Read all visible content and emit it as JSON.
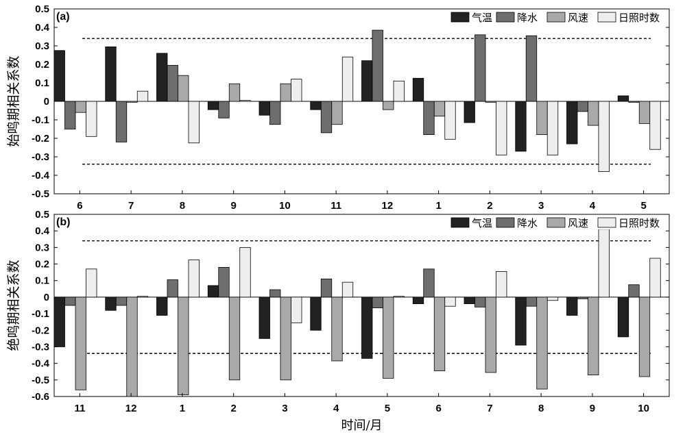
{
  "chart_data": [
    {
      "type": "bar",
      "panel_label": "(a)",
      "ylabel": "始鸣期相关系数",
      "xlabel": "",
      "ylim": [
        -0.5,
        0.5
      ],
      "yticks": [
        -0.5,
        -0.4,
        -0.3,
        -0.2,
        -0.1,
        0,
        0.1,
        0.2,
        0.3,
        0.4,
        0.5
      ],
      "ytick_labels": [
        "-0.5",
        "-0.4",
        "-0.3",
        "-0.2",
        "-0.1",
        "0",
        "0.1",
        "0.2",
        "0.3",
        "0.4",
        "0.5"
      ],
      "categories": [
        "6",
        "7",
        "8",
        "9",
        "10",
        "11",
        "12",
        "1",
        "2",
        "3",
        "4",
        "5"
      ],
      "threshold": 0.34,
      "legend_position": "top-right",
      "series": [
        {
          "name": "气温",
          "color": "#222222",
          "values": [
            0.275,
            0.295,
            0.26,
            -0.045,
            -0.075,
            -0.045,
            0.22,
            0.125,
            -0.115,
            -0.27,
            -0.23,
            0.03
          ]
        },
        {
          "name": "降水",
          "color": "#6e6e6e",
          "values": [
            -0.15,
            -0.22,
            0.195,
            -0.09,
            -0.125,
            -0.17,
            0.385,
            -0.18,
            0.36,
            0.355,
            -0.055,
            -0.005
          ]
        },
        {
          "name": "风速",
          "color": "#a9a9a9",
          "values": [
            -0.06,
            -0.005,
            0.14,
            0.095,
            0.095,
            -0.125,
            -0.045,
            -0.08,
            -0.005,
            -0.18,
            -0.13,
            -0.12
          ]
        },
        {
          "name": "日照时数",
          "color": "#eeeeee",
          "values": [
            -0.19,
            0.055,
            -0.225,
            0.005,
            0.12,
            0.24,
            0.11,
            -0.205,
            -0.29,
            -0.29,
            -0.38,
            -0.26
          ]
        }
      ]
    },
    {
      "type": "bar",
      "panel_label": "(b)",
      "ylabel": "绝鸣期相关系数",
      "xlabel": "时间/月",
      "ylim": [
        -0.6,
        0.5
      ],
      "yticks": [
        -0.6,
        -0.5,
        -0.4,
        -0.3,
        -0.2,
        -0.1,
        0,
        0.1,
        0.2,
        0.3,
        0.4,
        0.5
      ],
      "ytick_labels": [
        "-0.6",
        "-0.5",
        "-0.4",
        "-0.3",
        "-0.2",
        "-0.1",
        "0",
        "0.1",
        "0.2",
        "0.3",
        "0.4",
        "0.5"
      ],
      "categories": [
        "11",
        "12",
        "1",
        "2",
        "3",
        "4",
        "5",
        "6",
        "7",
        "8",
        "9",
        "10"
      ],
      "threshold": 0.34,
      "legend_position": "top-right",
      "series": [
        {
          "name": "气温",
          "color": "#222222",
          "values": [
            -0.3,
            -0.08,
            -0.11,
            0.07,
            -0.25,
            -0.2,
            -0.37,
            -0.04,
            -0.04,
            -0.29,
            -0.11,
            -0.24
          ]
        },
        {
          "name": "降水",
          "color": "#6e6e6e",
          "values": [
            -0.05,
            -0.05,
            0.105,
            0.18,
            0.045,
            0.11,
            -0.065,
            0.17,
            -0.06,
            -0.055,
            -0.01,
            0.075
          ]
        },
        {
          "name": "风速",
          "color": "#a9a9a9",
          "values": [
            -0.56,
            -0.6,
            -0.59,
            -0.5,
            -0.5,
            -0.385,
            -0.49,
            -0.445,
            -0.455,
            -0.555,
            -0.47,
            -0.48
          ]
        },
        {
          "name": "日照时数",
          "color": "#eeeeee",
          "values": [
            0.17,
            0.005,
            0.225,
            0.3,
            -0.155,
            0.09,
            0.005,
            -0.055,
            0.155,
            -0.02,
            0.41,
            0.235
          ]
        }
      ]
    }
  ]
}
